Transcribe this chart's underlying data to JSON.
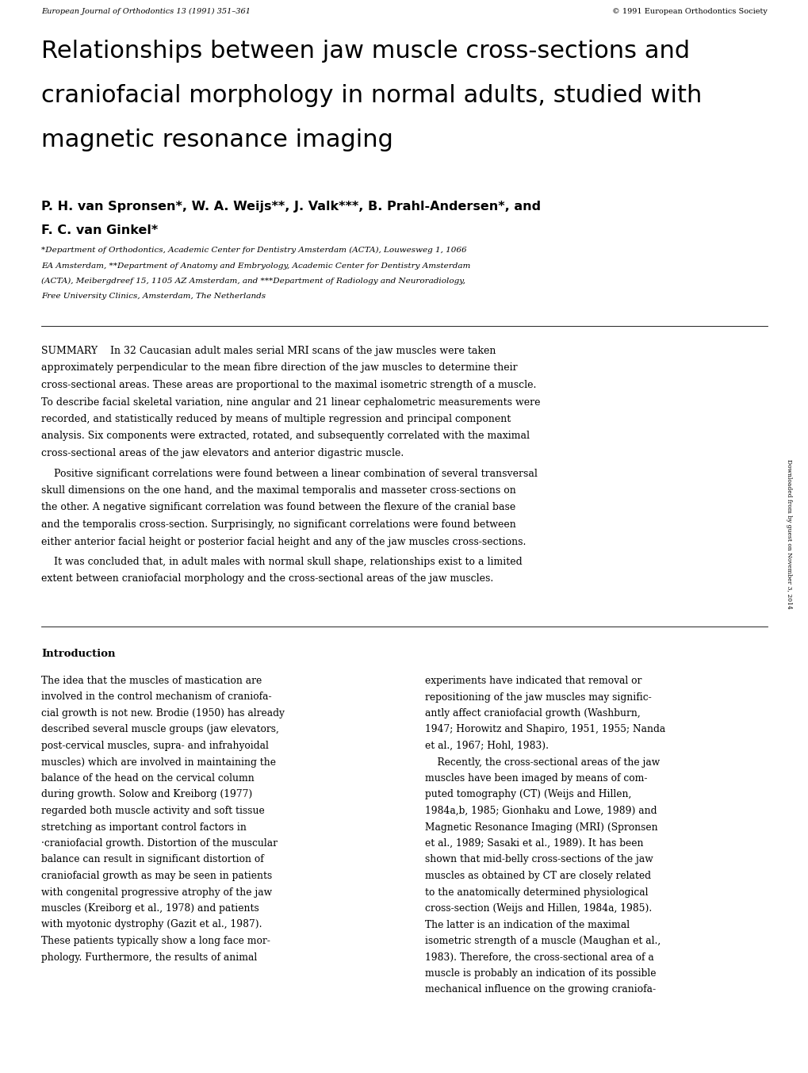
{
  "header_left": "European Journal of Orthodontics 13 (1991) 351–361",
  "header_right": "© 1991 European Orthodontics Society",
  "title_lines": [
    "Relationships between jaw muscle cross-sections and",
    "craniofacial morphology in normal adults, studied with",
    "magnetic resonance imaging"
  ],
  "authors_line1": "P. H. van Spronsen*, W. A. Weijs**, J. Valk***, B. Prahl-Andersen*, and",
  "authors_line2": "F. C. van Ginkel*",
  "affil_lines": [
    "*Department of Orthodontics, Academic Center for Dentistry Amsterdam (ACTA), Louwesweg 1, 1066",
    "EA Amsterdam, **Department of Anatomy and Embryology, Academic Center for Dentistry Amsterdam",
    "(ACTA), Meibergdreef 15, 1105 AZ Amsterdam, and ***Department of Radiology and Neuroradiology,",
    "Free University Clinics, Amsterdam, The Netherlands"
  ],
  "summary_first_line": "SUMMARY  In 32 Caucasian adult males serial MRI scans of the jaw muscles were taken",
  "summary_lines1": [
    "approximately perpendicular to the mean fibre direction of the jaw muscles to determine their",
    "cross-sectional areas. These areas are proportional to the maximal isometric strength of a muscle.",
    "To describe facial skeletal variation, nine angular and 21 linear cephalometric measurements were",
    "recorded, and statistically reduced by means of multiple regression and principal component",
    "analysis. Six components were extracted, rotated, and subsequently correlated with the maximal",
    "cross-sectional areas of the jaw elevators and anterior digastric muscle."
  ],
  "summary_lines2": [
    "    Positive significant correlations were found between a linear combination of several transversal",
    "skull dimensions on the one hand, and the maximal temporalis and masseter cross-sections on",
    "the other. A negative significant correlation was found between the flexure of the cranial base",
    "and the temporalis cross-section. Surprisingly, no significant correlations were found between",
    "either anterior facial height or posterior facial height and any of the jaw muscles cross-sections."
  ],
  "summary_lines3": [
    "    It was concluded that, in adult males with normal skull shape, relationships exist to a limited",
    "extent between craniofacial morphology and the cross-sectional areas of the jaw muscles."
  ],
  "intro_heading": "Introduction",
  "col1_lines": [
    "The idea that the muscles of mastication are",
    "involved in the control mechanism of craniofa-",
    "cial growth is not new. Brodie (1950) has already",
    "described several muscle groups (jaw elevators,",
    "post-cervical muscles, supra- and infrahyoidal",
    "muscles) which are involved in maintaining the",
    "balance of the head on the cervical column",
    "during growth. Solow and Kreiborg (1977)",
    "regarded both muscle activity and soft tissue",
    "stretching as important control factors in",
    "·craniofacial growth. Distortion of the muscular",
    "balance can result in significant distortion of",
    "craniofacial growth as may be seen in patients",
    "with congenital progressive atrophy of the jaw",
    "muscles (Kreiborg et al., 1978) and patients",
    "with myotonic dystrophy (Gazit et al., 1987).",
    "These patients typically show a long face mor-",
    "phology. Furthermore, the results of animal"
  ],
  "col2_lines": [
    "experiments have indicated that removal or",
    "repositioning of the jaw muscles may signific-",
    "antly affect craniofacial growth (Washburn,",
    "1947; Horowitz and Shapiro, 1951, 1955; Nanda",
    "et al., 1967; Hohl, 1983).",
    "    Recently, the cross-sectional areas of the jaw",
    "muscles have been imaged by means of com-",
    "puted tomography (CT) (Weijs and Hillen,",
    "1984a,b, 1985; Gionhaku and Lowe, 1989) and",
    "Magnetic Resonance Imaging (MRI) (Spronsen",
    "et al., 1989; Sasaki et al., 1989). It has been",
    "shown that mid-belly cross-sections of the jaw",
    "muscles as obtained by CT are closely related",
    "to the anatomically determined physiological",
    "cross-section (Weijs and Hillen, 1984a, 1985).",
    "The latter is an indication of the maximal",
    "isometric strength of a muscle (Maughan et al.,",
    "1983). Therefore, the cross-sectional area of a",
    "muscle is probably an indication of its possible",
    "mechanical influence on the growing craniofa-"
  ],
  "sidebar_text": "Downloaded from by guest on November 3, 2014",
  "background_color": "#ffffff"
}
